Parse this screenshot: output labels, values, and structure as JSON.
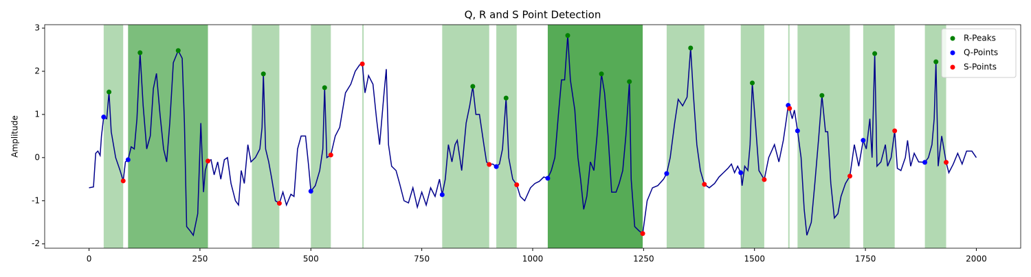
{
  "chart_data": {
    "type": "line",
    "title": "Q, R and S Point Detection",
    "ylabel": "Amplitude",
    "color": "#00008b",
    "x": [
      0,
      10,
      15,
      20,
      25,
      28,
      33,
      40,
      45,
      50,
      60,
      70,
      77,
      82,
      88,
      95,
      102,
      108,
      115,
      122,
      130,
      138,
      145,
      152,
      160,
      168,
      175,
      182,
      190,
      201,
      210,
      215,
      220,
      228,
      235,
      245,
      252,
      258,
      262,
      268,
      275,
      282,
      290,
      297,
      305,
      312,
      320,
      330,
      337,
      343,
      350,
      358,
      365,
      375,
      385,
      390,
      393,
      398,
      405,
      412,
      420,
      429,
      437,
      445,
      455,
      462,
      470,
      478,
      488,
      495,
      500,
      510,
      520,
      527,
      531,
      536,
      545,
      555,
      565,
      578,
      590,
      600,
      610,
      616,
      622,
      630,
      640,
      648,
      655,
      665,
      670,
      675,
      682,
      692,
      700,
      710,
      720,
      730,
      740,
      750,
      760,
      770,
      780,
      790,
      796,
      803,
      810,
      818,
      825,
      830,
      840,
      850,
      858,
      865,
      872,
      880,
      890,
      896,
      902,
      910,
      918,
      925,
      932,
      940,
      946,
      955,
      964,
      972,
      982,
      995,
      1005,
      1015,
      1025,
      1034,
      1042,
      1050,
      1058,
      1065,
      1072,
      1079,
      1085,
      1095,
      1102,
      1108,
      1115,
      1122,
      1130,
      1138,
      1145,
      1155,
      1162,
      1170,
      1178,
      1188,
      1195,
      1203,
      1210,
      1218,
      1222,
      1230,
      1240,
      1248,
      1258,
      1270,
      1282,
      1295,
      1302,
      1310,
      1320,
      1328,
      1338,
      1348,
      1356,
      1362,
      1370,
      1378,
      1387,
      1398,
      1410,
      1420,
      1430,
      1440,
      1448,
      1455,
      1462,
      1469,
      1472,
      1478,
      1485,
      1490,
      1495,
      1502,
      1510,
      1522,
      1532,
      1545,
      1555,
      1565,
      1572,
      1576,
      1579,
      1585,
      1590,
      1597,
      1605,
      1612,
      1618,
      1628,
      1636,
      1645,
      1652,
      1660,
      1665,
      1672,
      1680,
      1688,
      1695,
      1705,
      1715,
      1725,
      1735,
      1745,
      1752,
      1760,
      1765,
      1771,
      1776,
      1785,
      1795,
      1800,
      1808,
      1816,
      1822,
      1830,
      1840,
      1845,
      1852,
      1860,
      1870,
      1884,
      1892,
      1900,
      1905,
      1909,
      1914,
      1922,
      1932,
      1938,
      1948,
      1958,
      1968,
      1978,
      1990,
      2000
    ],
    "values": [
      -0.7,
      -0.68,
      0.1,
      0.15,
      0.05,
      0.5,
      0.94,
      0.9,
      1.52,
      0.6,
      0.0,
      -0.3,
      -0.54,
      -0.1,
      -0.05,
      0.25,
      0.2,
      0.9,
      2.43,
      1.2,
      0.2,
      0.5,
      1.6,
      1.95,
      1.0,
      0.2,
      -0.1,
      0.8,
      2.2,
      2.48,
      2.3,
      0.8,
      -1.6,
      -1.7,
      -1.8,
      -1.3,
      0.8,
      -0.8,
      -0.3,
      -0.08,
      -0.05,
      -0.4,
      -0.1,
      -0.5,
      -0.05,
      0.0,
      -0.6,
      -1.0,
      -1.1,
      -0.3,
      -0.6,
      0.3,
      -0.1,
      0.0,
      0.2,
      0.7,
      1.94,
      0.2,
      -0.1,
      -0.5,
      -1.0,
      -1.06,
      -0.8,
      -1.1,
      -0.85,
      -0.9,
      0.2,
      0.5,
      0.5,
      -0.2,
      -0.78,
      -0.65,
      -0.3,
      0.2,
      1.62,
      0.0,
      0.06,
      0.5,
      0.7,
      1.5,
      1.7,
      2.0,
      2.15,
      2.17,
      1.5,
      1.9,
      1.7,
      0.9,
      0.3,
      1.5,
      2.05,
      0.3,
      -0.2,
      -0.3,
      -0.6,
      -1.0,
      -1.05,
      -0.7,
      -1.15,
      -0.8,
      -1.1,
      -0.7,
      -0.9,
      -0.5,
      -0.86,
      -0.5,
      0.3,
      -0.1,
      0.3,
      0.4,
      -0.3,
      0.8,
      1.2,
      1.65,
      1.0,
      1.0,
      0.3,
      -0.1,
      -0.16,
      -0.15,
      -0.21,
      -0.15,
      0.2,
      1.38,
      0.0,
      -0.5,
      -0.63,
      -0.9,
      -1.0,
      -0.7,
      -0.6,
      -0.55,
      -0.45,
      -0.48,
      -0.3,
      0.0,
      1.0,
      1.8,
      1.8,
      2.83,
      1.8,
      1.1,
      0.0,
      -0.5,
      -1.2,
      -0.9,
      -0.1,
      -0.3,
      0.5,
      1.94,
      1.5,
      0.5,
      -0.8,
      -0.8,
      -0.6,
      -0.3,
      0.5,
      1.76,
      -0.5,
      -1.6,
      -1.7,
      -1.76,
      -1.0,
      -0.7,
      -0.65,
      -0.5,
      -0.37,
      0.0,
      0.8,
      1.35,
      1.2,
      1.4,
      2.54,
      1.5,
      0.3,
      -0.3,
      -0.62,
      -0.7,
      -0.6,
      -0.45,
      -0.35,
      -0.25,
      -0.15,
      -0.35,
      -0.2,
      -0.35,
      -0.65,
      -0.2,
      -0.3,
      0.3,
      1.73,
      0.8,
      -0.3,
      -0.51,
      0.0,
      0.3,
      -0.1,
      0.4,
      0.9,
      1.21,
      1.14,
      0.9,
      1.1,
      0.62,
      0.0,
      -1.2,
      -1.8,
      -1.5,
      -0.6,
      0.5,
      1.44,
      0.6,
      0.6,
      -0.6,
      -1.4,
      -1.3,
      -0.9,
      -0.6,
      -0.43,
      0.3,
      -0.2,
      0.4,
      0.2,
      0.9,
      0.0,
      2.41,
      -0.2,
      -0.1,
      0.3,
      -0.2,
      0.0,
      0.62,
      -0.25,
      -0.3,
      0.0,
      0.4,
      -0.2,
      0.1,
      -0.1,
      -0.11,
      0.0,
      0.3,
      0.9,
      2.22,
      -0.2,
      0.5,
      -0.11,
      -0.35,
      -0.15,
      0.1,
      -0.15,
      0.15,
      0.15,
      0.0
    ],
    "points": [
      {
        "name": "R-Peaks",
        "color": "green",
        "x": [
          45,
          115,
          201,
          393,
          531,
          865,
          940,
          1079,
          1155,
          1218,
          1356,
          1495,
          1652,
          1771,
          1909
        ],
        "values": [
          1.52,
          2.43,
          2.48,
          1.94,
          1.62,
          1.65,
          1.38,
          2.83,
          1.94,
          1.76,
          2.54,
          1.73,
          1.44,
          2.41,
          2.22
        ]
      },
      {
        "name": "Q-Points",
        "color": "blue",
        "x": [
          33,
          88,
          500,
          796,
          918,
          1034,
          1302,
          1469,
          1576,
          1597,
          1745,
          1884
        ],
        "values": [
          0.94,
          -0.05,
          -0.78,
          -0.86,
          -0.21,
          -0.48,
          -0.37,
          -0.35,
          1.21,
          0.62,
          0.4,
          -0.11
        ]
      },
      {
        "name": "S-Points",
        "color": "red",
        "x": [
          77,
          268,
          429,
          545,
          616,
          902,
          964,
          1248,
          1387,
          1522,
          1579,
          1715,
          1816,
          1932
        ],
        "values": [
          -0.54,
          -0.08,
          -1.06,
          0.06,
          2.17,
          -0.16,
          -0.63,
          -1.76,
          -0.62,
          -0.51,
          1.14,
          -0.43,
          0.62,
          -0.11
        ]
      }
    ],
    "spans": [
      [
        33,
        77
      ],
      [
        88,
        268
      ],
      [
        88,
        268
      ],
      [
        367,
        429
      ],
      [
        500,
        545
      ],
      [
        616,
        619
      ],
      [
        796,
        902
      ],
      [
        918,
        964
      ],
      [
        1034,
        1248
      ],
      [
        1034,
        1248
      ],
      [
        1034,
        1248
      ],
      [
        1302,
        1387
      ],
      [
        1469,
        1522
      ],
      [
        1576,
        1579
      ],
      [
        1597,
        1715
      ],
      [
        1745,
        1816
      ],
      [
        1884,
        1932
      ]
    ],
    "span_color": "green",
    "span_alpha": 0.3,
    "xlim": [
      -100,
      2100
    ],
    "ylim": [
      -2.1,
      3.08
    ],
    "xticks": [
      0,
      250,
      500,
      750,
      1000,
      1250,
      1500,
      1750,
      2000
    ],
    "yticks": [
      -2,
      -1,
      0,
      1,
      2,
      3
    ],
    "legend": "upper right"
  }
}
